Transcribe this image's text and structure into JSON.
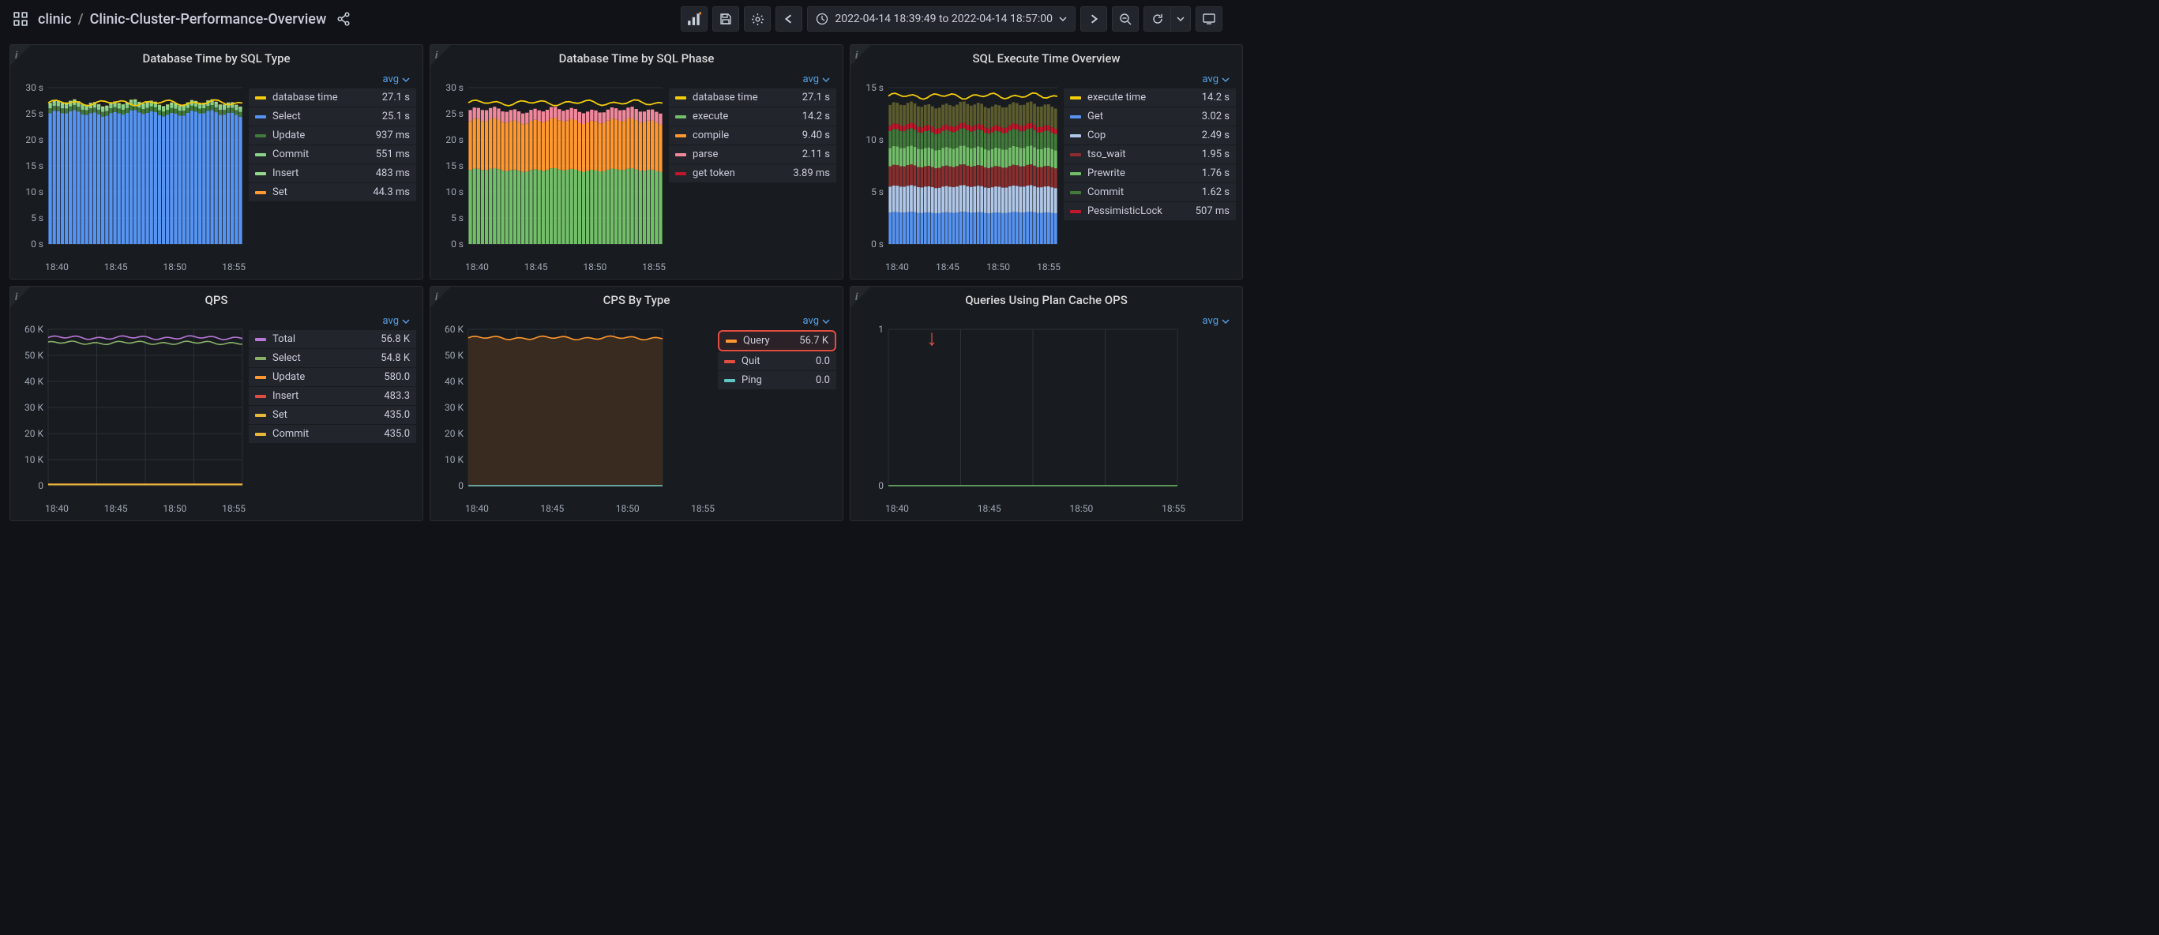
{
  "header": {
    "folder": "clinic",
    "dashboard": "Clinic-Cluster-Performance-Overview",
    "time_range": "2022-04-14 18:39:49 to 2022-04-14 18:57:00"
  },
  "xaxis_labels": [
    "18:40",
    "18:45",
    "18:50",
    "18:55"
  ],
  "legend_mode": "avg",
  "panels": {
    "db_time_sql_type": {
      "title": "Database Time by SQL Type",
      "type": "stacked-bar",
      "ylim": [
        0,
        30
      ],
      "ytick_step": 5,
      "yunit": "s",
      "background_color": "#181b1f",
      "grid_color": "#2c3235",
      "bar_count": 48,
      "stacks": [
        {
          "key": "select",
          "value": 25.1,
          "color": "#5794f2"
        },
        {
          "key": "update",
          "value": 0.937,
          "color": "#427a3b"
        },
        {
          "key": "commit",
          "value": 0.551,
          "color": "#8ad18a"
        },
        {
          "key": "insert",
          "value": 0.483,
          "color": "#96d98d"
        },
        {
          "key": "set",
          "value": 0.0443,
          "color": "#ff9830"
        }
      ],
      "top_line": {
        "key": "database_time",
        "value": 27.1,
        "color": "#f2cc0c"
      },
      "legend": [
        {
          "label": "database time",
          "value": "27.1 s",
          "color": "#f2cc0c"
        },
        {
          "label": "Select",
          "value": "25.1 s",
          "color": "#5794f2"
        },
        {
          "label": "Update",
          "value": "937 ms",
          "color": "#427a3b"
        },
        {
          "label": "Commit",
          "value": "551 ms",
          "color": "#8ad18a"
        },
        {
          "label": "Insert",
          "value": "483 ms",
          "color": "#96d98d"
        },
        {
          "label": "Set",
          "value": "44.3 ms",
          "color": "#ff9830"
        }
      ]
    },
    "db_time_sql_phase": {
      "title": "Database Time by SQL Phase",
      "type": "stacked-bar",
      "ylim": [
        0,
        30
      ],
      "ytick_step": 5,
      "yunit": "s",
      "bar_count": 48,
      "stacks": [
        {
          "key": "execute",
          "value": 14.2,
          "color": "#73bf69"
        },
        {
          "key": "compile",
          "value": 9.4,
          "color": "#ff9830"
        },
        {
          "key": "parse",
          "value": 2.11,
          "color": "#f2889b"
        },
        {
          "key": "get_token",
          "value": 0.00389,
          "color": "#c4162a"
        }
      ],
      "top_line": {
        "key": "database_time",
        "value": 27.1,
        "color": "#f2cc0c"
      },
      "legend": [
        {
          "label": "database time",
          "value": "27.1 s",
          "color": "#f2cc0c"
        },
        {
          "label": "execute",
          "value": "14.2 s",
          "color": "#73bf69"
        },
        {
          "label": "compile",
          "value": "9.40 s",
          "color": "#ff9830"
        },
        {
          "label": "parse",
          "value": "2.11 s",
          "color": "#f2889b"
        },
        {
          "label": "get token",
          "value": "3.89 ms",
          "color": "#c4162a"
        }
      ]
    },
    "sql_execute_time": {
      "title": "SQL Execute Time Overview",
      "type": "stacked-bar",
      "ylim": [
        0,
        15
      ],
      "ytick_step": 5,
      "yunit": "s",
      "bar_count": 48,
      "stacks": [
        {
          "key": "get",
          "value": 3.02,
          "color": "#5794f2"
        },
        {
          "key": "cop",
          "value": 2.49,
          "color": "#b0c7e8"
        },
        {
          "key": "tso_wait",
          "value": 1.95,
          "color": "#8a2f2f"
        },
        {
          "key": "prewrite",
          "value": 1.76,
          "color": "#73bf69"
        },
        {
          "key": "commit",
          "value": 1.62,
          "color": "#427a3b"
        },
        {
          "key": "pessimistic",
          "value": 0.507,
          "color": "#c4162a"
        },
        {
          "key": "rest",
          "value": 2.0,
          "color": "#5b5b2e"
        }
      ],
      "top_line": {
        "key": "execute_time",
        "value": 14.2,
        "color": "#f2cc0c"
      },
      "legend": [
        {
          "label": "execute time",
          "value": "14.2 s",
          "color": "#f2cc0c"
        },
        {
          "label": "Get",
          "value": "3.02 s",
          "color": "#5794f2"
        },
        {
          "label": "Cop",
          "value": "2.49 s",
          "color": "#b0c7e8"
        },
        {
          "label": "tso_wait",
          "value": "1.95 s",
          "color": "#8a2f2f"
        },
        {
          "label": "Prewrite",
          "value": "1.76 s",
          "color": "#73bf69"
        },
        {
          "label": "Commit",
          "value": "1.62 s",
          "color": "#427a3b"
        },
        {
          "label": "PessimisticLock",
          "value": "507 ms",
          "color": "#c4162a"
        }
      ]
    },
    "qps": {
      "title": "QPS",
      "type": "line",
      "ylim": [
        0,
        60000
      ],
      "ytick_step": 10000,
      "yunit": "K",
      "series": [
        {
          "key": "total",
          "value": 56800,
          "color": "#b877d9"
        },
        {
          "key": "select",
          "value": 54800,
          "color": "#8ab06a"
        },
        {
          "key": "update",
          "value": 580,
          "color": "#ff9830"
        },
        {
          "key": "insert",
          "value": 483.3,
          "color": "#e24d42"
        },
        {
          "key": "set",
          "value": 435,
          "color": "#eab839"
        },
        {
          "key": "commit",
          "value": 435,
          "color": "#eab839"
        }
      ],
      "legend": [
        {
          "label": "Total",
          "value": "56.8 K",
          "color": "#b877d9"
        },
        {
          "label": "Select",
          "value": "54.8 K",
          "color": "#8ab06a"
        },
        {
          "label": "Update",
          "value": "580.0",
          "color": "#ff9830"
        },
        {
          "label": "Insert",
          "value": "483.3",
          "color": "#e24d42"
        },
        {
          "label": "Set",
          "value": "435.0",
          "color": "#eab839"
        },
        {
          "label": "Commit",
          "value": "435.0",
          "color": "#eab839"
        }
      ]
    },
    "cps_by_type": {
      "title": "CPS By Type",
      "type": "line-filled",
      "ylim": [
        0,
        60000
      ],
      "ytick_step": 10000,
      "yunit": "K",
      "series": [
        {
          "key": "query",
          "value": 56700,
          "color": "#ff9830",
          "fill": "#3a2b20"
        },
        {
          "key": "quit",
          "value": 0,
          "color": "#e24d42"
        },
        {
          "key": "ping",
          "value": 0,
          "color": "#5ec4c4"
        }
      ],
      "legend": [
        {
          "label": "Query",
          "value": "56.7 K",
          "color": "#ff9830",
          "highlight": true
        },
        {
          "label": "Quit",
          "value": "0.0",
          "color": "#e24d42"
        },
        {
          "label": "Ping",
          "value": "0.0",
          "color": "#5ec4c4"
        }
      ]
    },
    "plan_cache_ops": {
      "title": "Queries Using Plan Cache OPS",
      "type": "line",
      "ylim": [
        0,
        1
      ],
      "ytick_step": 1,
      "yunit": "",
      "series": [
        {
          "key": "ops",
          "value": 0,
          "color": "#73bf69"
        }
      ],
      "legend": [],
      "annotation_arrow": true,
      "tight_xaxis": [
        "18:40",
        "18:45",
        "18:50",
        "18:55"
      ]
    }
  }
}
